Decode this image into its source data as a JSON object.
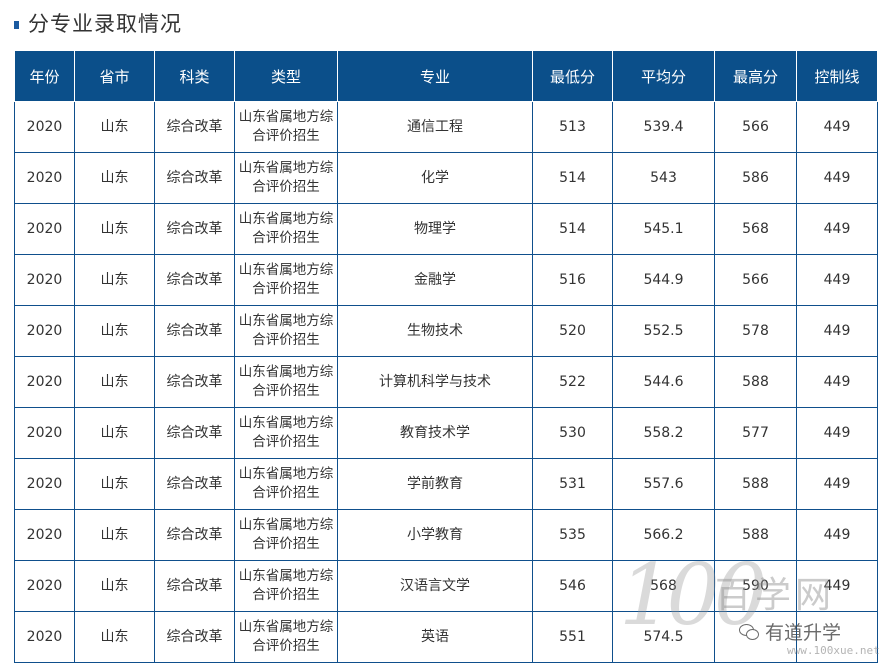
{
  "page": {
    "section_title": "分专业录取情况"
  },
  "table": {
    "headers": [
      "年份",
      "省市",
      "科类",
      "类型",
      "专业",
      "最低分",
      "平均分",
      "最高分",
      "控制线"
    ],
    "rows": [
      {
        "year": "2020",
        "province": "山东",
        "category": "综合改革",
        "type_line1": "山东省属地方综",
        "type_line2": "合评价招生",
        "major": "通信工程",
        "min": "513",
        "avg": "539.4",
        "max": "566",
        "control": "449"
      },
      {
        "year": "2020",
        "province": "山东",
        "category": "综合改革",
        "type_line1": "山东省属地方综",
        "type_line2": "合评价招生",
        "major": "化学",
        "min": "514",
        "avg": "543",
        "max": "586",
        "control": "449"
      },
      {
        "year": "2020",
        "province": "山东",
        "category": "综合改革",
        "type_line1": "山东省属地方综",
        "type_line2": "合评价招生",
        "major": "物理学",
        "min": "514",
        "avg": "545.1",
        "max": "568",
        "control": "449"
      },
      {
        "year": "2020",
        "province": "山东",
        "category": "综合改革",
        "type_line1": "山东省属地方综",
        "type_line2": "合评价招生",
        "major": "金融学",
        "min": "516",
        "avg": "544.9",
        "max": "566",
        "control": "449"
      },
      {
        "year": "2020",
        "province": "山东",
        "category": "综合改革",
        "type_line1": "山东省属地方综",
        "type_line2": "合评价招生",
        "major": "生物技术",
        "min": "520",
        "avg": "552.5",
        "max": "578",
        "control": "449"
      },
      {
        "year": "2020",
        "province": "山东",
        "category": "综合改革",
        "type_line1": "山东省属地方综",
        "type_line2": "合评价招生",
        "major": "计算机科学与技术",
        "min": "522",
        "avg": "544.6",
        "max": "588",
        "control": "449"
      },
      {
        "year": "2020",
        "province": "山东",
        "category": "综合改革",
        "type_line1": "山东省属地方综",
        "type_line2": "合评价招生",
        "major": "教育技术学",
        "min": "530",
        "avg": "558.2",
        "max": "577",
        "control": "449"
      },
      {
        "year": "2020",
        "province": "山东",
        "category": "综合改革",
        "type_line1": "山东省属地方综",
        "type_line2": "合评价招生",
        "major": "学前教育",
        "min": "531",
        "avg": "557.6",
        "max": "588",
        "control": "449"
      },
      {
        "year": "2020",
        "province": "山东",
        "category": "综合改革",
        "type_line1": "山东省属地方综",
        "type_line2": "合评价招生",
        "major": "小学教育",
        "min": "535",
        "avg": "566.2",
        "max": "588",
        "control": "449"
      },
      {
        "year": "2020",
        "province": "山东",
        "category": "综合改革",
        "type_line1": "山东省属地方综",
        "type_line2": "合评价招生",
        "major": "汉语言文学",
        "min": "546",
        "avg": "568",
        "max": "590",
        "control": "449"
      },
      {
        "year": "2020",
        "province": "山东",
        "category": "综合改革",
        "type_line1": "山东省属地方综",
        "type_line2": "合评价招生",
        "major": "英语",
        "min": "551",
        "avg": "574.5",
        "max": "",
        "control": ""
      }
    ]
  },
  "watermark": {
    "numeral": "100",
    "brand": "百学网",
    "wechat_label": "有道升学",
    "url": "www.100xue.net"
  },
  "colors": {
    "header_bg": "#0b4f8a",
    "border": "#0f4f8c",
    "title_bullet": "#1a5aa0"
  },
  "icons": {
    "title_bullet": "square-bullet-icon",
    "wechat": "wechat-icon"
  }
}
